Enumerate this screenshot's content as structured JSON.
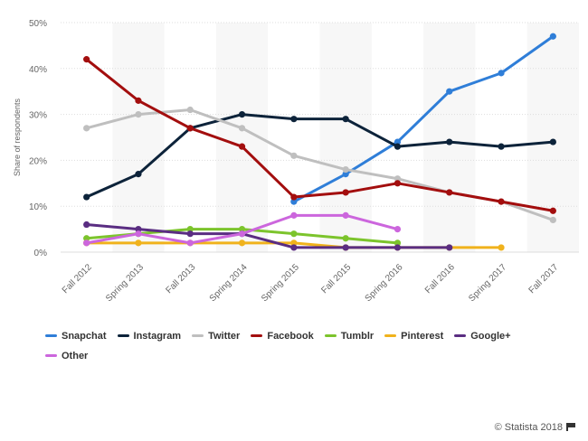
{
  "chart_data": {
    "type": "line",
    "title": "",
    "xlabel": "",
    "ylabel": "Share of respondents",
    "ylim": [
      0,
      50
    ],
    "yticks": [
      "0%",
      "10%",
      "20%",
      "30%",
      "40%",
      "50%"
    ],
    "grid": true,
    "legend_position": "bottom",
    "categories": [
      "Fall 2012",
      "Spring 2013",
      "Fall 2013",
      "Spring 2014",
      "Spring 2015",
      "Fall 2015",
      "Spring 2016",
      "Fall 2016",
      "Spring 2017",
      "Fall 2017"
    ],
    "series": [
      {
        "name": "Snapchat",
        "color": "#2f7ed8",
        "values": [
          null,
          null,
          null,
          null,
          11,
          17,
          24,
          35,
          39,
          47
        ]
      },
      {
        "name": "Instagram",
        "color": "#0d233a",
        "values": [
          12,
          17,
          27,
          30,
          29,
          29,
          23,
          24,
          23,
          24
        ]
      },
      {
        "name": "Twitter",
        "color": "#bfbfbf",
        "values": [
          27,
          30,
          31,
          27,
          21,
          18,
          16,
          13,
          11,
          7
        ]
      },
      {
        "name": "Facebook",
        "color": "#a30e0e",
        "values": [
          42,
          33,
          27,
          23,
          12,
          13,
          15,
          13,
          11,
          9
        ]
      },
      {
        "name": "Tumblr",
        "color": "#7cc42c",
        "values": [
          3,
          4,
          5,
          5,
          4,
          3,
          2,
          null,
          null,
          null
        ]
      },
      {
        "name": "Pinterest",
        "color": "#f0b21c",
        "values": [
          2,
          2,
          2,
          2,
          2,
          1,
          1,
          1,
          1,
          null
        ]
      },
      {
        "name": "Google+",
        "color": "#5a2d82",
        "values": [
          6,
          5,
          4,
          4,
          1,
          1,
          1,
          1,
          null,
          null
        ]
      },
      {
        "name": "Other",
        "color": "#cc66dd",
        "values": [
          2,
          4,
          2,
          4,
          8,
          8,
          5,
          null,
          null,
          null
        ]
      }
    ]
  },
  "credits": {
    "text": "© Statista 2018",
    "icon": "flag-icon"
  }
}
